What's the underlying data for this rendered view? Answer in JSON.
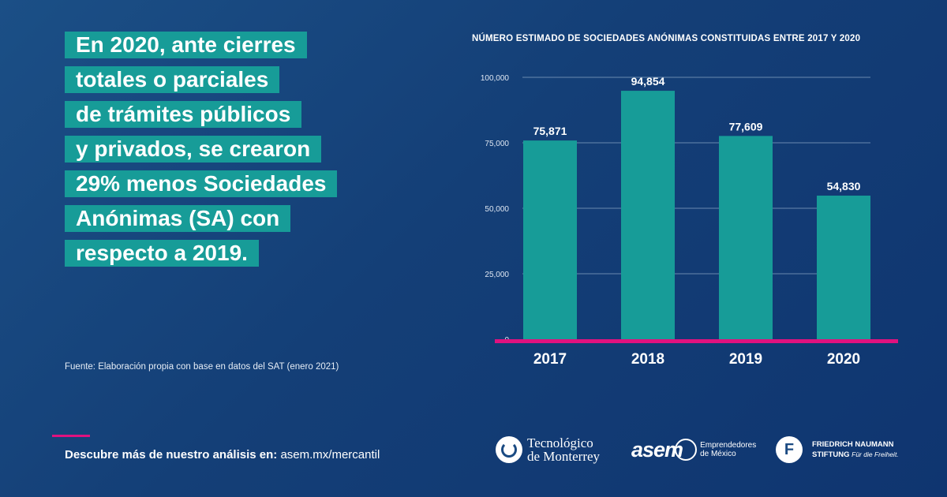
{
  "headline": {
    "lines": [
      "En 2020, ante cierres",
      "totales o parciales",
      "de trámites públicos",
      "y privados, se crearon",
      "29% menos Sociedades",
      "Anónimas (SA) con",
      "respecto a 2019."
    ]
  },
  "source": "Fuente: Elaboración propia con base en datos del SAT (enero 2021)",
  "footer": {
    "lead": "Descubre más de nuestro análisis en:",
    "link": "asem.mx/mercantil"
  },
  "logos": {
    "tec_line1": "Tecnológico",
    "tec_line2": "de Monterrey",
    "asem_word": "asem",
    "asem_line1": "Emprendedores",
    "asem_line2": "de México",
    "fn_line1": "FRIEDRICH NAUMANN",
    "fn_line2": "STIFTUNG",
    "fn_slogan": "Für die Freiheit.",
    "fn_glyph": "F"
  },
  "colors": {
    "background": "#174580",
    "bar": "#179c98",
    "headline_bg": "#179c98",
    "baseline": "#e0127f",
    "gridline": "#8fa9c8"
  },
  "chart_data": {
    "type": "bar",
    "title": "NÚMERO ESTIMADO DE SOCIEDADES ANÓNIMAS CONSTITUIDAS ENTRE 2017 Y 2020",
    "categories": [
      "2017",
      "2018",
      "2019",
      "2020"
    ],
    "values": [
      75871,
      94854,
      77609,
      54830
    ],
    "value_labels": [
      "75,871",
      "94,854",
      "77,609",
      "54,830"
    ],
    "yticks": [
      0,
      25000,
      50000,
      75000,
      100000
    ],
    "ytick_labels": [
      "0",
      "25,000",
      "50,000",
      "75,000",
      "100,000"
    ],
    "ylim": [
      0,
      100000
    ],
    "grid": true,
    "xlabel": "",
    "ylabel": ""
  }
}
